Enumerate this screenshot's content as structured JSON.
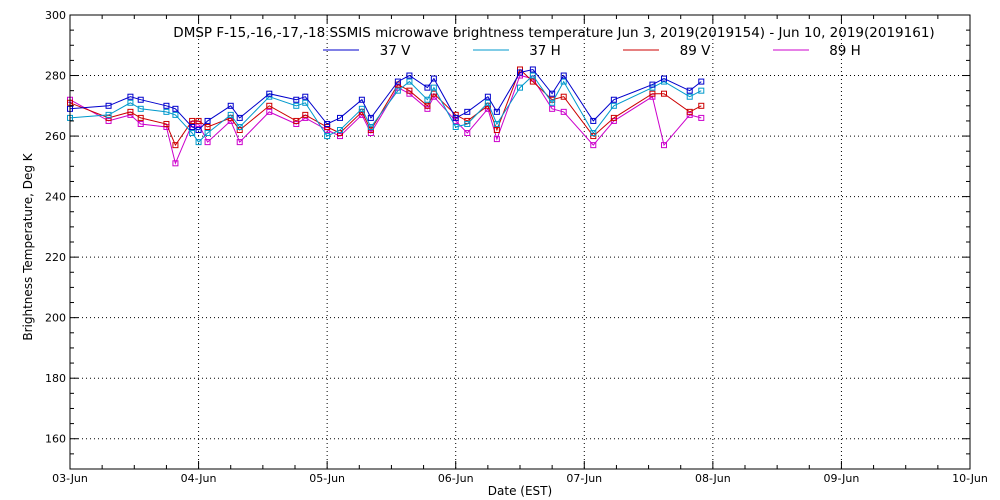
{
  "chart_data": {
    "type": "line",
    "title": "DMSP F-15,-16,-17,-18 SSMIS microwave brightness temperature Jun  3, 2019(2019154) - Jun 10, 2019(2019161)",
    "xlabel": "Date (EST)",
    "ylabel": "Brightness Temperature, Deg K",
    "xlim": [
      0,
      7
    ],
    "ylim": [
      150,
      300
    ],
    "x_ticks": [
      0,
      1,
      2,
      3,
      4,
      5,
      6,
      7
    ],
    "x_tick_labels": [
      "03-Jun",
      "04-Jun",
      "05-Jun",
      "06-Jun",
      "07-Jun",
      "08-Jun",
      "09-Jun",
      "10-Jun"
    ],
    "y_ticks": [
      160,
      180,
      200,
      220,
      240,
      260,
      280,
      300
    ],
    "y_tick_labels": [
      "160",
      "180",
      "200",
      "220",
      "240",
      "260",
      "280",
      "300"
    ],
    "grid": true,
    "legend_position": "top-center",
    "x": [
      0.0,
      0.3,
      0.47,
      0.55,
      0.75,
      0.82,
      0.95,
      1.0,
      1.07,
      1.25,
      1.32,
      1.55,
      1.76,
      1.83,
      2.0,
      2.1,
      2.27,
      2.34,
      2.55,
      2.64,
      2.78,
      2.83,
      3.0,
      3.09,
      3.25,
      3.32,
      3.5,
      3.6,
      3.75,
      3.84,
      4.07,
      4.23,
      4.53,
      4.62,
      4.82,
      4.91
    ],
    "series": [
      {
        "name": "37 V",
        "color": "#0000cc",
        "values": [
          269,
          270,
          273,
          272,
          270,
          269,
          263,
          262,
          265,
          270,
          266,
          274,
          272,
          273,
          264,
          266,
          272,
          266,
          278,
          280,
          276,
          279,
          266,
          268,
          273,
          268,
          281,
          282,
          274,
          280,
          265,
          272,
          277,
          279,
          275,
          278
        ]
      },
      {
        "name": "37 H",
        "color": "#0099cc",
        "values": [
          266,
          267,
          271,
          269,
          268,
          267,
          261,
          258,
          261,
          267,
          263,
          273,
          270,
          271,
          260,
          262,
          269,
          263,
          275,
          278,
          272,
          276,
          263,
          264,
          271,
          264,
          276,
          280,
          271,
          278,
          261,
          270,
          276,
          278,
          273,
          275
        ]
      },
      {
        "name": "89 V",
        "color": "#cc0000",
        "values": [
          271,
          266,
          268,
          266,
          264,
          257,
          265,
          265,
          263,
          266,
          262,
          270,
          265,
          267,
          263,
          261,
          268,
          262,
          277,
          275,
          270,
          274,
          267,
          265,
          270,
          262,
          282,
          278,
          272,
          273,
          260,
          266,
          274,
          274,
          268,
          270
        ]
      },
      {
        "name": "89 H",
        "color": "#cc00cc",
        "values": [
          272,
          265,
          267,
          264,
          263,
          251,
          264,
          264,
          258,
          265,
          258,
          268,
          264,
          266,
          262,
          260,
          267,
          261,
          276,
          274,
          269,
          273,
          265,
          261,
          269,
          259,
          280,
          279,
          269,
          268,
          257,
          265,
          273,
          257,
          267,
          266
        ]
      }
    ]
  }
}
